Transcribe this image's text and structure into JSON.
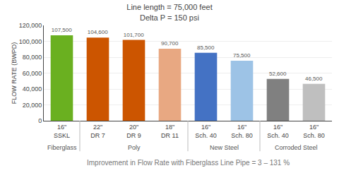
{
  "chart_data": {
    "type": "bar",
    "title": "Line length = 75,000 feet",
    "subtitle": "Delta P = 150 psi",
    "footer": "Improvement in Flow Rate with Fiberglass Line Pipe = 3 – 131 %",
    "ylabel": "FLOW RATE (BWPD)",
    "categories": [
      [
        "16\"",
        "SSKL"
      ],
      [
        "22\"",
        "DR 7"
      ],
      [
        "20\"",
        "DR 9"
      ],
      [
        "18\"",
        "DR 11"
      ],
      [
        "16\"",
        "Sch. 40"
      ],
      [
        "16\"",
        "Sch. 80"
      ],
      [
        "16\"",
        "Sch. 40"
      ],
      [
        "16\"",
        "Sch. 80"
      ]
    ],
    "groups": [
      "Fiberglass",
      "Poly",
      "Poly",
      "Poly",
      "New Steel",
      "New Steel",
      "Corroded Steel",
      "Corroded Steel"
    ],
    "values": [
      107500,
      104600,
      101700,
      90700,
      85500,
      75500,
      52600,
      46500
    ],
    "value_labels": [
      "107,500",
      "104,600",
      "101,700",
      "90,700",
      "85,500",
      "75,500",
      "52,600",
      "46,500"
    ],
    "colors": [
      "#6ab020",
      "#cc5500",
      "#cc5500",
      "#e8a882",
      "#4472c4",
      "#9dc3e6",
      "#808080",
      "#bfbfbf"
    ],
    "ylim": [
      0,
      120000
    ],
    "yticks": [
      0,
      {
        "value": 20000,
        "label": "20,000"
      },
      {
        "value": 40000,
        "label": "40,000"
      },
      {
        "value": 60000,
        "label": "60,000"
      },
      {
        "value": 80000,
        "label": "80,000"
      },
      {
        "value": 100000,
        "label": "100,000"
      },
      {
        "value": 120000,
        "label": "120,000"
      }
    ],
    "grid": true,
    "data_labels": true
  }
}
